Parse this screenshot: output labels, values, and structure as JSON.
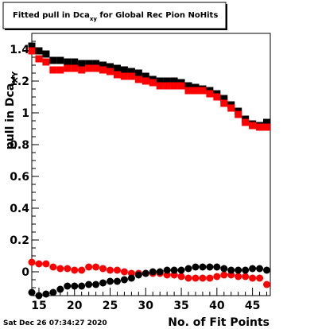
{
  "chart_data": {
    "type": "scatter",
    "title": "Fitted pull in Dca_xy for Global Rec Pion NoHits",
    "title_parts": {
      "prefix": "Fitted pull in Dca",
      "subscript": "xy",
      "suffix": " for Global Rec Pion NoHits"
    },
    "xlabel": "No. of Fit Points",
    "ylabel": "pull in Dca_XY",
    "ylabel_parts": {
      "main": "pull in Dca",
      "subscript": "XY"
    },
    "timestamp": "Sat Dec 26 07:34:27 2020",
    "xlim": [
      14,
      47.5
    ],
    "ylim": [
      -0.15,
      1.5
    ],
    "x_ticks": [
      15,
      20,
      25,
      30,
      35,
      40,
      45
    ],
    "x_tick_labels": [
      "15",
      "20",
      "25",
      "30",
      "35",
      "40",
      "45"
    ],
    "y_ticks": [
      0,
      0.2,
      0.4,
      0.6,
      0.8,
      1.0,
      1.2,
      1.4
    ],
    "y_tick_labels": [
      "0",
      "0.2",
      "0.4",
      "0.6",
      "0.8",
      "1",
      "1.2",
      "1.4"
    ],
    "grid": false,
    "series": [
      {
        "color": "#000000",
        "marker": "square",
        "x": [
          14,
          15,
          16,
          17,
          18,
          19,
          20,
          21,
          22,
          23,
          24,
          25,
          26,
          27,
          28,
          29,
          30,
          31,
          32,
          33,
          34,
          35,
          36,
          37,
          38,
          39,
          40,
          41,
          42,
          43,
          44,
          45,
          46,
          47
        ],
        "values": [
          1.42,
          1.39,
          1.37,
          1.33,
          1.33,
          1.32,
          1.32,
          1.31,
          1.31,
          1.31,
          1.3,
          1.29,
          1.28,
          1.27,
          1.26,
          1.25,
          1.23,
          1.21,
          1.2,
          1.2,
          1.2,
          1.19,
          1.17,
          1.16,
          1.15,
          1.14,
          1.12,
          1.09,
          1.05,
          1.01,
          0.96,
          0.93,
          0.92,
          0.94
        ]
      },
      {
        "color": "#ff0000",
        "marker": "square",
        "x": [
          14,
          15,
          16,
          17,
          18,
          19,
          20,
          21,
          22,
          23,
          24,
          25,
          26,
          27,
          28,
          29,
          30,
          31,
          32,
          33,
          34,
          35,
          36,
          37,
          38,
          39,
          40,
          41,
          42,
          43,
          44,
          45,
          46,
          47
        ],
        "values": [
          1.39,
          1.34,
          1.32,
          1.27,
          1.27,
          1.28,
          1.28,
          1.27,
          1.28,
          1.28,
          1.27,
          1.26,
          1.24,
          1.23,
          1.23,
          1.21,
          1.2,
          1.19,
          1.17,
          1.17,
          1.17,
          1.17,
          1.14,
          1.14,
          1.14,
          1.12,
          1.1,
          1.06,
          1.03,
          0.99,
          0.94,
          0.92,
          0.91,
          0.91
        ]
      },
      {
        "color": "#ff0000",
        "marker": "circle",
        "x": [
          14,
          15,
          16,
          17,
          18,
          19,
          20,
          21,
          22,
          23,
          24,
          25,
          26,
          27,
          28,
          29,
          30,
          31,
          32,
          33,
          34,
          35,
          36,
          37,
          38,
          39,
          40,
          41,
          42,
          43,
          44,
          45,
          46,
          47
        ],
        "values": [
          0.06,
          0.05,
          0.05,
          0.03,
          0.02,
          0.02,
          0.01,
          0.01,
          0.03,
          0.03,
          0.02,
          0.01,
          0.01,
          0.0,
          -0.01,
          -0.01,
          -0.01,
          -0.01,
          -0.01,
          -0.02,
          -0.02,
          -0.03,
          -0.04,
          -0.04,
          -0.04,
          -0.04,
          -0.03,
          -0.02,
          -0.02,
          -0.03,
          -0.03,
          -0.04,
          -0.04,
          -0.08
        ]
      },
      {
        "color": "#000000",
        "marker": "circle",
        "x": [
          14,
          15,
          16,
          17,
          18,
          19,
          20,
          21,
          22,
          23,
          24,
          25,
          26,
          27,
          28,
          29,
          30,
          31,
          32,
          33,
          34,
          35,
          36,
          37,
          38,
          39,
          40,
          41,
          42,
          43,
          44,
          45,
          46,
          47
        ],
        "values": [
          -0.13,
          -0.15,
          -0.14,
          -0.13,
          -0.11,
          -0.09,
          -0.09,
          -0.09,
          -0.08,
          -0.08,
          -0.07,
          -0.06,
          -0.06,
          -0.05,
          -0.04,
          -0.02,
          -0.01,
          0.0,
          0.0,
          0.01,
          0.01,
          0.01,
          0.02,
          0.03,
          0.03,
          0.03,
          0.03,
          0.02,
          0.01,
          0.01,
          0.01,
          0.02,
          0.02,
          0.01
        ]
      }
    ]
  }
}
